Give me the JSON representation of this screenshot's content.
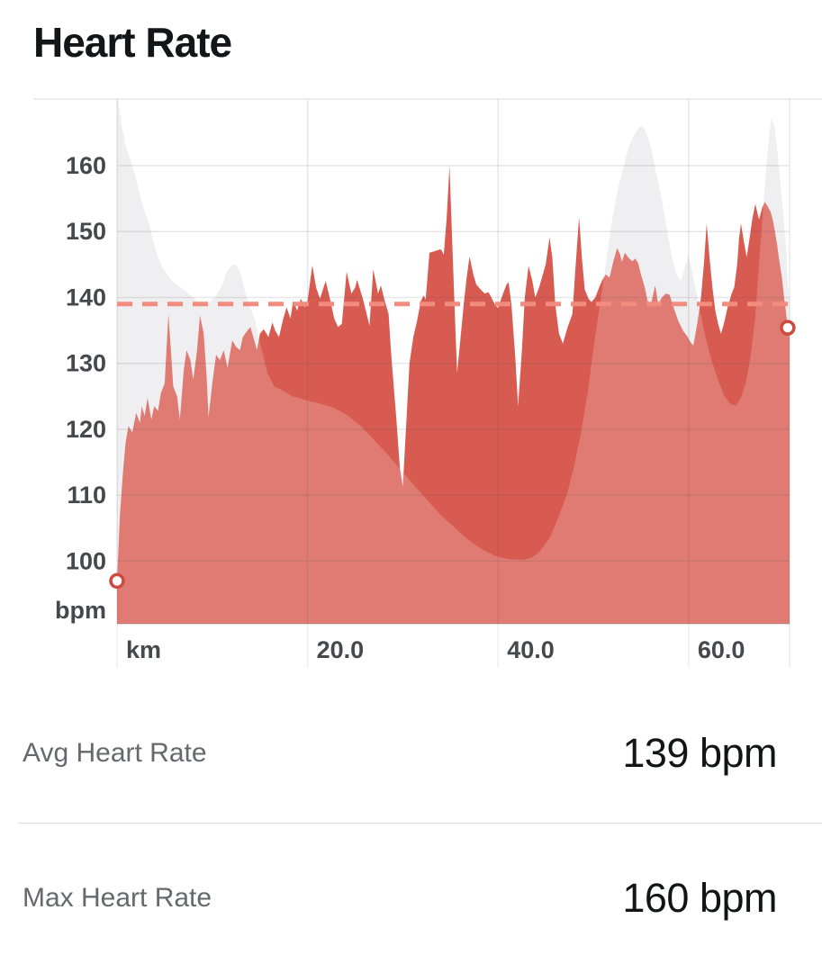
{
  "header": {
    "title": "Heart Rate"
  },
  "stats": [
    {
      "label": "Avg Heart Rate",
      "value": "139 bpm"
    },
    {
      "label": "Max Heart Rate",
      "value": "160 bpm"
    }
  ],
  "chart_data": {
    "type": "area",
    "title": "Heart Rate",
    "ylabel_unit": "bpm",
    "xlabel_unit": "km",
    "y_ticks": [
      160,
      150,
      140,
      130,
      120,
      110,
      100
    ],
    "x_ticks": [
      {
        "km": 0,
        "label": "km"
      },
      {
        "km": 20,
        "label": "20.0"
      },
      {
        "km": 40,
        "label": "40.0"
      },
      {
        "km": 60,
        "label": "60.0"
      }
    ],
    "x_range_km": [
      0,
      70.6
    ],
    "y_range_bpm": [
      90.5,
      170.1
    ],
    "grid": true,
    "avg_heart_rate_bpm": 139,
    "max_heart_rate_bpm": 160,
    "end_markers": {
      "start": [
        0,
        97
      ],
      "end": [
        70.4,
        135.4
      ]
    },
    "colors": {
      "heart_rate_fill": "#d6564b",
      "avg_line": "#f18c7e",
      "elevation_fill": "#ebebee",
      "grid_line": "#55555f",
      "axis_text": "#45484d",
      "marker_ring": "#d0493e"
    },
    "series": [
      {
        "name": "heart_rate",
        "unit": "bpm",
        "points": [
          [
            0,
            97
          ],
          [
            0.3,
            107
          ],
          [
            0.6,
            113
          ],
          [
            0.9,
            118
          ],
          [
            1.2,
            120.5
          ],
          [
            1.6,
            119.5
          ],
          [
            2.0,
            122.5
          ],
          [
            2.4,
            121
          ],
          [
            2.6,
            123.5
          ],
          [
            2.9,
            122
          ],
          [
            3.2,
            124.8
          ],
          [
            3.6,
            121.5
          ],
          [
            3.9,
            123.5
          ],
          [
            4.3,
            122.8
          ],
          [
            4.6,
            125.5
          ],
          [
            5.0,
            127
          ],
          [
            5.4,
            137.5
          ],
          [
            5.7,
            131
          ],
          [
            5.9,
            126.5
          ],
          [
            6.3,
            125
          ],
          [
            6.6,
            121.5
          ],
          [
            7.0,
            129
          ],
          [
            7.3,
            132
          ],
          [
            7.7,
            130.5
          ],
          [
            8.0,
            127.5
          ],
          [
            8.4,
            132
          ],
          [
            8.7,
            137.3
          ],
          [
            9.1,
            134.5
          ],
          [
            9.4,
            128
          ],
          [
            9.6,
            121.8
          ],
          [
            10.0,
            127
          ],
          [
            10.4,
            131.3
          ],
          [
            10.8,
            130.5
          ],
          [
            11.2,
            132
          ],
          [
            11.6,
            129.3
          ],
          [
            12.1,
            133.5
          ],
          [
            12.5,
            132.5
          ],
          [
            12.9,
            132
          ],
          [
            13.2,
            134
          ],
          [
            13.6,
            134.8
          ],
          [
            14.0,
            135.5
          ],
          [
            14.4,
            133.5
          ],
          [
            14.7,
            132
          ],
          [
            15.0,
            134.5
          ],
          [
            15.4,
            135.2
          ],
          [
            15.9,
            134
          ],
          [
            16.3,
            136.2
          ],
          [
            16.6,
            135
          ],
          [
            17.0,
            134
          ],
          [
            17.4,
            136.5
          ],
          [
            17.8,
            138.5
          ],
          [
            18.2,
            136.8
          ],
          [
            18.5,
            139.5
          ],
          [
            18.9,
            138
          ],
          [
            19.3,
            139.8
          ],
          [
            19.7,
            138.5
          ],
          [
            20.0,
            139.5
          ],
          [
            20.5,
            144.9
          ],
          [
            20.9,
            141.5
          ],
          [
            21.3,
            139.8
          ],
          [
            21.9,
            142.5
          ],
          [
            22.4,
            139.5
          ],
          [
            22.8,
            136.8
          ],
          [
            23.2,
            135.5
          ],
          [
            23.6,
            136
          ],
          [
            24.1,
            143.9
          ],
          [
            24.6,
            140.6
          ],
          [
            25.0,
            141.5
          ],
          [
            25.2,
            142.7
          ],
          [
            25.8,
            139.8
          ],
          [
            26.2,
            137.5
          ],
          [
            26.5,
            135.7
          ],
          [
            26.9,
            144.3
          ],
          [
            27.4,
            140.6
          ],
          [
            27.7,
            141.8
          ],
          [
            28.1,
            139.5
          ],
          [
            28.5,
            137.5
          ],
          [
            28.8,
            131
          ],
          [
            29.3,
            122
          ],
          [
            29.7,
            114
          ],
          [
            30.0,
            111.3
          ],
          [
            30.4,
            122
          ],
          [
            30.7,
            130
          ],
          [
            31.1,
            134
          ],
          [
            31.5,
            136.5
          ],
          [
            31.9,
            139.5
          ],
          [
            32.2,
            140.3
          ],
          [
            32.4,
            139.7
          ],
          [
            32.8,
            146.8
          ],
          [
            33.3,
            147
          ],
          [
            33.7,
            147.2
          ],
          [
            34.0,
            147.3
          ],
          [
            34.3,
            146.5
          ],
          [
            34.6,
            152
          ],
          [
            34.9,
            160
          ],
          [
            35.2,
            148
          ],
          [
            35.5,
            136
          ],
          [
            35.7,
            128.6
          ],
          [
            36.0,
            133
          ],
          [
            36.4,
            139
          ],
          [
            36.7,
            143
          ],
          [
            37.0,
            146.2
          ],
          [
            37.4,
            143.5
          ],
          [
            37.7,
            142
          ],
          [
            38.1,
            141.3
          ],
          [
            38.6,
            140.6
          ],
          [
            39.0,
            140.8
          ],
          [
            39.3,
            140
          ],
          [
            39.7,
            138.8
          ],
          [
            40.0,
            138.4
          ],
          [
            40.5,
            140.5
          ],
          [
            40.9,
            142
          ],
          [
            41.1,
            142.3
          ],
          [
            41.4,
            139
          ],
          [
            41.8,
            131
          ],
          [
            42.1,
            123.5
          ],
          [
            42.5,
            132
          ],
          [
            42.8,
            140
          ],
          [
            43.2,
            144.8
          ],
          [
            43.6,
            142.5
          ],
          [
            43.9,
            140
          ],
          [
            44.3,
            141.5
          ],
          [
            44.6,
            143
          ],
          [
            45.0,
            145
          ],
          [
            45.4,
            149.1
          ],
          [
            45.7,
            146
          ],
          [
            46.0,
            139
          ],
          [
            46.4,
            134.5
          ],
          [
            46.8,
            133
          ],
          [
            47.3,
            135.5
          ],
          [
            47.8,
            137.5
          ],
          [
            48.1,
            144
          ],
          [
            48.5,
            152.2
          ],
          [
            48.8,
            146
          ],
          [
            49.1,
            141.2
          ],
          [
            49.5,
            139.8
          ],
          [
            49.8,
            139.3
          ],
          [
            50.2,
            140
          ],
          [
            50.6,
            141.5
          ],
          [
            50.9,
            142.5
          ],
          [
            51.3,
            143.5
          ],
          [
            51.7,
            143
          ],
          [
            52.1,
            145.5
          ],
          [
            52.5,
            147.5
          ],
          [
            52.8,
            146.5
          ],
          [
            53.0,
            145.4
          ],
          [
            53.3,
            146.8
          ],
          [
            53.7,
            146
          ],
          [
            54.1,
            145.5
          ],
          [
            54.4,
            145.9
          ],
          [
            54.7,
            145.2
          ],
          [
            55.0,
            143.5
          ],
          [
            55.4,
            141.5
          ],
          [
            55.7,
            139.5
          ],
          [
            56.0,
            138.6
          ],
          [
            56.4,
            141.3
          ],
          [
            56.5,
            141.8
          ],
          [
            56.8,
            139
          ],
          [
            57.2,
            140
          ],
          [
            57.6,
            140.6
          ],
          [
            58.0,
            140.4
          ],
          [
            58.4,
            138.6
          ],
          [
            58.9,
            136.5
          ],
          [
            59.4,
            135
          ],
          [
            59.9,
            134
          ],
          [
            60.2,
            133.2
          ],
          [
            60.5,
            132.7
          ],
          [
            60.9,
            136
          ],
          [
            61.3,
            140
          ],
          [
            61.6,
            145
          ],
          [
            61.9,
            151.2
          ],
          [
            62.2,
            146
          ],
          [
            62.5,
            141.5
          ],
          [
            62.8,
            138
          ],
          [
            63.1,
            136
          ],
          [
            63.4,
            134.5
          ],
          [
            63.7,
            136
          ],
          [
            64.1,
            138.5
          ],
          [
            64.5,
            140.5
          ],
          [
            64.8,
            141.6
          ],
          [
            65.1,
            145
          ],
          [
            65.3,
            149
          ],
          [
            65.5,
            151.2
          ],
          [
            65.8,
            148.5
          ],
          [
            66.1,
            146.1
          ],
          [
            66.4,
            149
          ],
          [
            66.7,
            152
          ],
          [
            67.0,
            154.2
          ],
          [
            67.2,
            153
          ],
          [
            67.4,
            151.8
          ],
          [
            67.7,
            153.5
          ],
          [
            68.0,
            154.5
          ],
          [
            68.3,
            153.8
          ],
          [
            68.6,
            153
          ],
          [
            68.8,
            152
          ],
          [
            69.0,
            150.5
          ],
          [
            69.3,
            148
          ],
          [
            69.5,
            145.7
          ],
          [
            69.8,
            143
          ],
          [
            70.0,
            140.2
          ],
          [
            70.2,
            138
          ],
          [
            70.4,
            135.4
          ],
          [
            70.6,
            134
          ]
        ]
      },
      {
        "name": "elevation_profile",
        "unit": "scaled-to-bpm-axis",
        "points": [
          [
            0,
            171
          ],
          [
            0.5,
            166
          ],
          [
            0.9,
            163
          ],
          [
            1.4,
            161
          ],
          [
            1.9,
            158.5
          ],
          [
            2.4,
            155.5
          ],
          [
            2.8,
            153.5
          ],
          [
            3.3,
            151.5
          ],
          [
            3.8,
            148.5
          ],
          [
            4.3,
            146
          ],
          [
            4.7,
            144.7
          ],
          [
            5.4,
            143.2
          ],
          [
            6.1,
            142
          ],
          [
            6.8,
            141.4
          ],
          [
            7.6,
            140.5
          ],
          [
            8.3,
            139.6
          ],
          [
            9.1,
            139
          ],
          [
            9.7,
            139.2
          ],
          [
            10.4,
            140.3
          ],
          [
            11.1,
            142
          ],
          [
            11.5,
            143.8
          ],
          [
            12.0,
            144.8
          ],
          [
            12.5,
            145
          ],
          [
            13.0,
            143.5
          ],
          [
            13.4,
            141
          ],
          [
            13.9,
            138.8
          ],
          [
            14.5,
            136.5
          ],
          [
            15.1,
            132.5
          ],
          [
            15.8,
            128.5
          ],
          [
            16.5,
            126.5
          ],
          [
            17.5,
            125.8
          ],
          [
            18.4,
            125
          ],
          [
            19.9,
            124.4
          ],
          [
            21.3,
            123.9
          ],
          [
            22.7,
            123.3
          ],
          [
            24.1,
            122.2
          ],
          [
            25.5,
            120.6
          ],
          [
            26.9,
            118.5
          ],
          [
            28.4,
            116.2
          ],
          [
            29.8,
            113.8
          ],
          [
            31.2,
            111.5
          ],
          [
            32.6,
            109.2
          ],
          [
            34.0,
            107
          ],
          [
            35.5,
            105
          ],
          [
            36.9,
            103.2
          ],
          [
            38.3,
            101.8
          ],
          [
            39.7,
            100.8
          ],
          [
            41.1,
            100.3
          ],
          [
            42.6,
            100.2
          ],
          [
            43.5,
            100.5
          ],
          [
            44.4,
            101.5
          ],
          [
            45.4,
            103.5
          ],
          [
            46.3,
            106.5
          ],
          [
            47.3,
            110.5
          ],
          [
            48.0,
            114.5
          ],
          [
            48.7,
            119.5
          ],
          [
            49.4,
            125.5
          ],
          [
            50.0,
            132
          ],
          [
            50.7,
            139
          ],
          [
            51.4,
            146
          ],
          [
            52.0,
            152
          ],
          [
            52.6,
            156.5
          ],
          [
            53.2,
            160
          ],
          [
            53.7,
            162.8
          ],
          [
            54.3,
            164.7
          ],
          [
            54.8,
            165.8
          ],
          [
            55.2,
            166
          ],
          [
            55.6,
            164.8
          ],
          [
            56.1,
            162.5
          ],
          [
            56.5,
            159.5
          ],
          [
            57.1,
            155.5
          ],
          [
            57.7,
            150.5
          ],
          [
            58.2,
            146.5
          ],
          [
            58.7,
            143.5
          ],
          [
            59.2,
            142.5
          ],
          [
            59.6,
            144.5
          ],
          [
            60.0,
            146.3
          ],
          [
            60.3,
            144.5
          ],
          [
            60.7,
            141.5
          ],
          [
            61.2,
            138
          ],
          [
            61.7,
            134.5
          ],
          [
            62.4,
            130.5
          ],
          [
            63.1,
            127.5
          ],
          [
            63.7,
            125.2
          ],
          [
            64.4,
            123.8
          ],
          [
            65.0,
            123.6
          ],
          [
            65.5,
            124.8
          ],
          [
            66.0,
            127
          ],
          [
            66.5,
            131
          ],
          [
            67.0,
            137
          ],
          [
            67.4,
            145
          ],
          [
            67.8,
            153
          ],
          [
            68.2,
            160.5
          ],
          [
            68.5,
            165
          ],
          [
            68.7,
            167.3
          ],
          [
            69.0,
            166
          ],
          [
            69.3,
            162.5
          ],
          [
            69.6,
            158
          ],
          [
            69.9,
            153
          ],
          [
            70.2,
            148
          ],
          [
            70.4,
            142.5
          ],
          [
            70.6,
            139.5
          ]
        ]
      }
    ]
  }
}
